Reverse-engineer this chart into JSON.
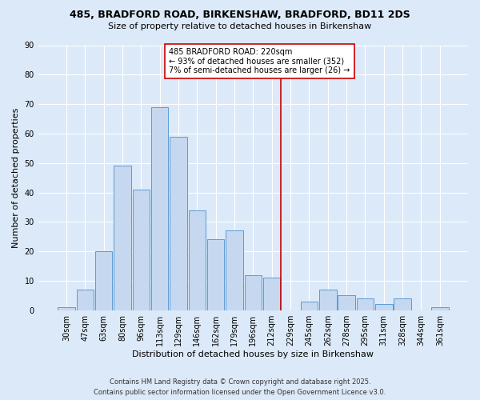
{
  "title1": "485, BRADFORD ROAD, BIRKENSHAW, BRADFORD, BD11 2DS",
  "title2": "Size of property relative to detached houses in Birkenshaw",
  "xlabel": "Distribution of detached houses by size in Birkenshaw",
  "ylabel": "Number of detached properties",
  "categories": [
    "30sqm",
    "47sqm",
    "63sqm",
    "80sqm",
    "96sqm",
    "113sqm",
    "129sqm",
    "146sqm",
    "162sqm",
    "179sqm",
    "196sqm",
    "212sqm",
    "229sqm",
    "245sqm",
    "262sqm",
    "278sqm",
    "295sqm",
    "311sqm",
    "328sqm",
    "344sqm",
    "361sqm"
  ],
  "values": [
    1,
    7,
    20,
    49,
    41,
    69,
    59,
    34,
    24,
    27,
    12,
    11,
    0,
    3,
    7,
    5,
    4,
    2,
    4,
    0,
    1
  ],
  "bar_color": "#c5d8f0",
  "bar_edge_color": "#5b9bd5",
  "vline_color": "#cc0000",
  "ylim": [
    0,
    90
  ],
  "yticks": [
    0,
    10,
    20,
    30,
    40,
    50,
    60,
    70,
    80,
    90
  ],
  "annotation_title": "485 BRADFORD ROAD: 220sqm",
  "annotation_line1": "← 93% of detached houses are smaller (352)",
  "annotation_line2": "7% of semi-detached houses are larger (26) →",
  "annotation_box_edge": "#cc0000",
  "footer1": "Contains HM Land Registry data © Crown copyright and database right 2025.",
  "footer2": "Contains public sector information licensed under the Open Government Licence v3.0.",
  "background_color": "#dce9f8",
  "plot_background": "#dce9f8",
  "grid_color": "#ffffff",
  "title_fontsize": 9,
  "subtitle_fontsize": 8,
  "axis_label_fontsize": 8,
  "tick_fontsize": 7,
  "annotation_fontsize": 7,
  "footer_fontsize": 6
}
